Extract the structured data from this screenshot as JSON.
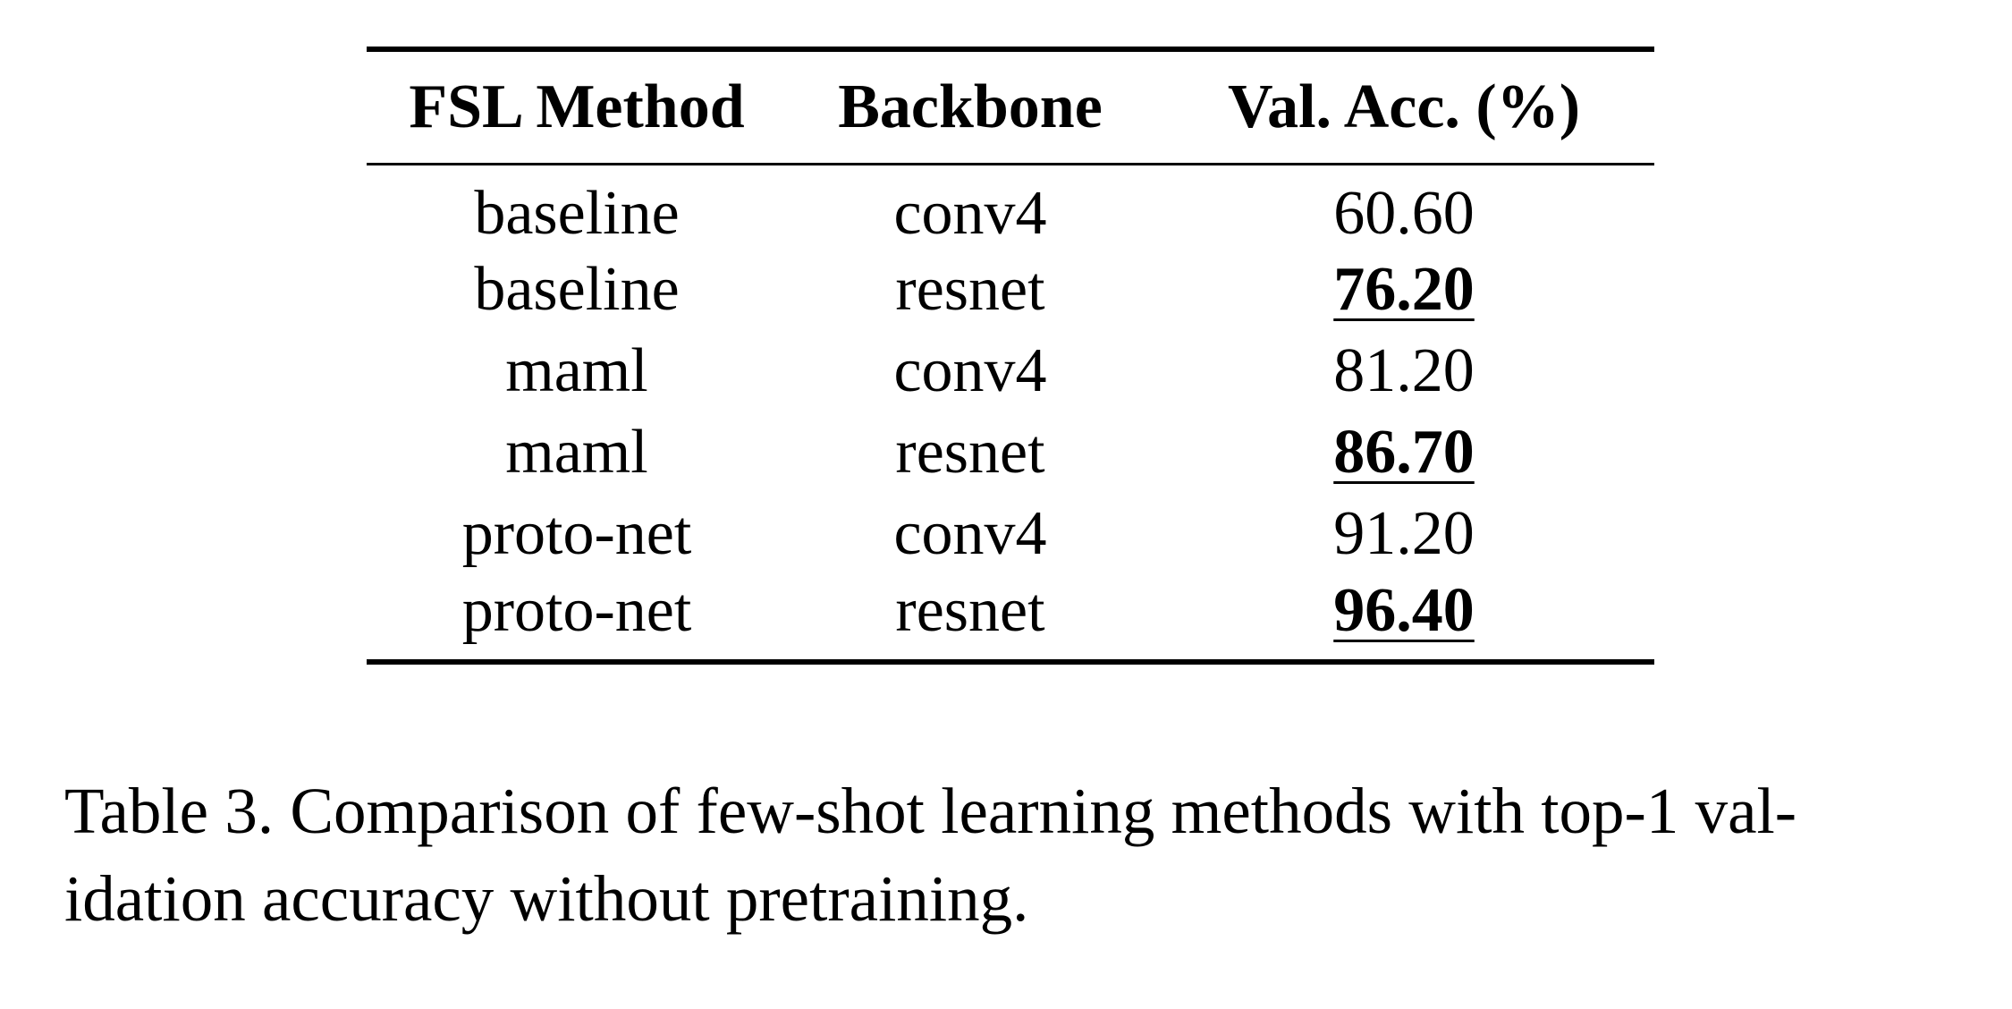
{
  "table": {
    "headers": [
      "FSL Method",
      "Backbone",
      "Val. Acc. (%)"
    ],
    "rows": [
      {
        "method": "baseline",
        "backbone": "conv4",
        "val_acc": "60.60",
        "best": false
      },
      {
        "method": "baseline",
        "backbone": "resnet",
        "val_acc": "76.20",
        "best": true
      },
      {
        "method": "maml",
        "backbone": "conv4",
        "val_acc": "81.20",
        "best": false
      },
      {
        "method": "maml",
        "backbone": "resnet",
        "val_acc": "86.70",
        "best": true
      },
      {
        "method": "proto-net",
        "backbone": "conv4",
        "val_acc": "91.20",
        "best": false
      },
      {
        "method": "proto-net",
        "backbone": "resnet",
        "val_acc": "96.40",
        "best": true
      }
    ]
  },
  "caption": {
    "line1": "Table 3. Comparison of few-shot learning methods with top-1 val-",
    "line2": "idation accuracy without pretraining."
  }
}
